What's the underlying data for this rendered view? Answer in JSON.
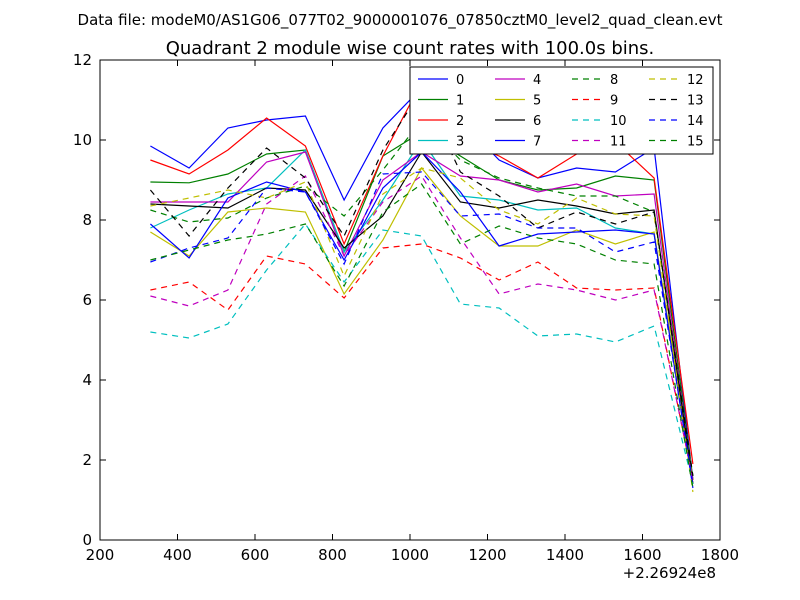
{
  "header": {
    "data_file": "Data file: modeM0/AS1G06_077T02_9000001076_07850cztM0_level2_quad_clean.evt"
  },
  "chart_data": {
    "type": "line",
    "title": "Quadrant 2 module wise count rates with 100.0s bins.",
    "xlabel": "",
    "ylabel": "",
    "x_offset_label": "+2.26924e8",
    "xlim": [
      200,
      1800
    ],
    "ylim": [
      0,
      12
    ],
    "xticks": [
      "200",
      "400",
      "600",
      "800",
      "1000",
      "1200",
      "1400",
      "1600",
      "1800"
    ],
    "yticks": [
      "0",
      "2",
      "4",
      "6",
      "8",
      "10",
      "12"
    ],
    "grid": false,
    "legend_position": "top-right",
    "x": [
      330,
      430,
      530,
      630,
      730,
      830,
      930,
      1030,
      1130,
      1230,
      1330,
      1430,
      1530,
      1630,
      1730
    ],
    "series": [
      {
        "name": "0",
        "color": "#0000ff",
        "dash": "solid",
        "values": [
          9.85,
          9.3,
          10.3,
          10.5,
          10.6,
          8.5,
          10.3,
          11.3,
          10.5,
          9.5,
          9.05,
          9.3,
          9.2,
          9.8,
          1.5
        ]
      },
      {
        "name": "1",
        "color": "#008000",
        "dash": "solid",
        "values": [
          8.95,
          8.93,
          9.15,
          9.65,
          9.75,
          7.2,
          9.6,
          10.2,
          9.6,
          9.0,
          8.75,
          8.8,
          9.1,
          9.0,
          1.5
        ]
      },
      {
        "name": "2",
        "color": "#ff0000",
        "dash": "solid",
        "values": [
          9.5,
          9.15,
          9.75,
          10.55,
          9.85,
          7.4,
          9.6,
          11.45,
          10.0,
          9.6,
          9.05,
          9.65,
          9.95,
          9.05,
          1.9
        ]
      },
      {
        "name": "3",
        "color": "#00bfbf",
        "dash": "solid",
        "values": [
          7.8,
          8.25,
          8.65,
          8.8,
          9.75,
          7.2,
          8.5,
          10.0,
          8.6,
          8.5,
          8.25,
          8.3,
          7.8,
          7.65,
          1.5
        ]
      },
      {
        "name": "4",
        "color": "#bf00bf",
        "dash": "solid",
        "values": [
          8.45,
          8.45,
          8.45,
          9.45,
          9.7,
          7.1,
          9.0,
          9.7,
          9.1,
          9.0,
          8.7,
          8.9,
          8.6,
          8.65,
          1.4
        ]
      },
      {
        "name": "5",
        "color": "#bfbf00",
        "dash": "solid",
        "values": [
          7.7,
          7.1,
          8.2,
          8.3,
          8.2,
          6.15,
          7.5,
          9.3,
          8.1,
          7.35,
          7.35,
          7.75,
          7.4,
          7.7,
          1.5
        ]
      },
      {
        "name": "6",
        "color": "#000000",
        "dash": "solid",
        "values": [
          8.4,
          8.35,
          8.3,
          8.8,
          8.75,
          7.3,
          8.1,
          9.7,
          8.45,
          8.3,
          8.5,
          8.35,
          8.15,
          8.25,
          1.4
        ]
      },
      {
        "name": "7",
        "color": "#0000ff",
        "dash": "solid",
        "values": [
          7.9,
          7.05,
          8.55,
          8.95,
          8.7,
          7.0,
          8.8,
          9.7,
          8.7,
          7.35,
          7.65,
          7.7,
          7.75,
          7.65,
          1.3
        ]
      },
      {
        "name": "8",
        "color": "#008000",
        "dash": "dashed",
        "values": [
          8.25,
          7.95,
          8.05,
          8.55,
          8.85,
          8.1,
          9.25,
          10.5,
          9.5,
          9.05,
          8.8,
          8.6,
          8.6,
          8.2,
          1.6
        ]
      },
      {
        "name": "9",
        "color": "#ff0000",
        "dash": "dashed",
        "values": [
          6.25,
          6.45,
          5.75,
          7.1,
          6.9,
          6.05,
          7.3,
          7.4,
          7.05,
          6.5,
          6.95,
          6.3,
          6.25,
          6.3,
          1.5
        ]
      },
      {
        "name": "10",
        "color": "#00bfbf",
        "dash": "dashed",
        "values": [
          5.2,
          5.05,
          5.4,
          6.75,
          7.9,
          6.45,
          7.75,
          7.6,
          5.9,
          5.8,
          5.1,
          5.15,
          4.95,
          5.35,
          1.4
        ]
      },
      {
        "name": "11",
        "color": "#bf00bf",
        "dash": "dashed",
        "values": [
          6.1,
          5.85,
          6.25,
          8.4,
          9.1,
          7.1,
          8.45,
          9.1,
          7.55,
          6.15,
          6.4,
          6.25,
          6.0,
          6.25,
          1.5
        ]
      },
      {
        "name": "12",
        "color": "#bfbf00",
        "dash": "dashed",
        "values": [
          8.35,
          8.55,
          8.75,
          8.55,
          8.95,
          6.6,
          8.65,
          9.3,
          9.05,
          8.25,
          7.9,
          8.55,
          8.15,
          8.1,
          1.2
        ]
      },
      {
        "name": "13",
        "color": "#000000",
        "dash": "dashed",
        "values": [
          8.75,
          7.6,
          8.8,
          9.8,
          9.05,
          7.6,
          9.75,
          11.25,
          9.2,
          8.6,
          7.8,
          8.2,
          7.9,
          8.2,
          1.6
        ]
      },
      {
        "name": "14",
        "color": "#0000ff",
        "dash": "dashed",
        "values": [
          6.95,
          7.3,
          7.55,
          8.8,
          8.7,
          6.9,
          9.15,
          9.2,
          8.1,
          8.15,
          7.8,
          7.8,
          7.2,
          7.45,
          1.4
        ]
      },
      {
        "name": "15",
        "color": "#008000",
        "dash": "dashed",
        "values": [
          7.0,
          7.25,
          7.5,
          7.65,
          7.9,
          6.35,
          8.2,
          8.9,
          7.4,
          7.85,
          7.55,
          7.4,
          7.0,
          6.9,
          1.3
        ]
      }
    ]
  }
}
